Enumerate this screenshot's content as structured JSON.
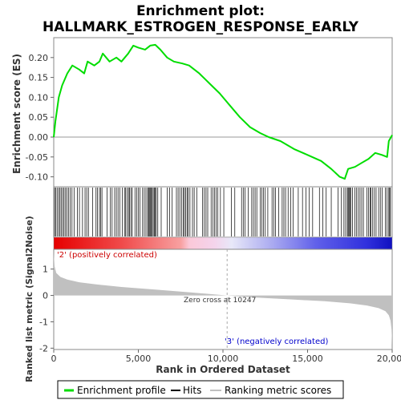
{
  "chart_data": {
    "type": "line",
    "title_line1": "Enrichment plot:",
    "title_line2": "HALLMARK_ESTROGEN_RESPONSE_EARLY",
    "es_panel": {
      "ylabel": "Enrichment score (ES)",
      "ylim": [
        -0.125,
        0.25
      ],
      "yticks": [
        0.2,
        0.15,
        0.1,
        0.05,
        0.0,
        -0.05,
        -0.1
      ],
      "ytick_labels": [
        "0.20",
        "0.15",
        "0.10",
        "0.05",
        "0.00",
        "-0.05",
        "-0.10"
      ],
      "line_color": "#00dd00",
      "points": [
        [
          0,
          0.0
        ],
        [
          100,
          0.04
        ],
        [
          300,
          0.1
        ],
        [
          500,
          0.13
        ],
        [
          800,
          0.16
        ],
        [
          1100,
          0.18
        ],
        [
          1500,
          0.17
        ],
        [
          1800,
          0.16
        ],
        [
          2000,
          0.19
        ],
        [
          2400,
          0.18
        ],
        [
          2700,
          0.19
        ],
        [
          2900,
          0.21
        ],
        [
          3300,
          0.19
        ],
        [
          3700,
          0.2
        ],
        [
          4000,
          0.19
        ],
        [
          4400,
          0.21
        ],
        [
          4700,
          0.23
        ],
        [
          5000,
          0.225
        ],
        [
          5400,
          0.22
        ],
        [
          5700,
          0.23
        ],
        [
          6000,
          0.232
        ],
        [
          6300,
          0.22
        ],
        [
          6700,
          0.2
        ],
        [
          7100,
          0.19
        ],
        [
          7600,
          0.185
        ],
        [
          8000,
          0.18
        ],
        [
          8600,
          0.16
        ],
        [
          9200,
          0.135
        ],
        [
          9800,
          0.11
        ],
        [
          10400,
          0.08
        ],
        [
          11000,
          0.05
        ],
        [
          11600,
          0.025
        ],
        [
          12200,
          0.01
        ],
        [
          12700,
          0.0
        ],
        [
          13400,
          -0.01
        ],
        [
          14200,
          -0.03
        ],
        [
          15000,
          -0.045
        ],
        [
          15800,
          -0.06
        ],
        [
          16400,
          -0.08
        ],
        [
          16900,
          -0.1
        ],
        [
          17200,
          -0.105
        ],
        [
          17400,
          -0.08
        ],
        [
          17800,
          -0.075
        ],
        [
          18200,
          -0.065
        ],
        [
          18600,
          -0.055
        ],
        [
          19000,
          -0.04
        ],
        [
          19400,
          -0.045
        ],
        [
          19700,
          -0.05
        ],
        [
          19800,
          -0.01
        ],
        [
          20000,
          0.005
        ]
      ]
    },
    "hits": [
      50,
      120,
      200,
      290,
      370,
      440,
      530,
      610,
      700,
      780,
      880,
      980,
      1080,
      1200,
      1400,
      1520,
      1700,
      1850,
      1950,
      2050,
      2300,
      2500,
      2580,
      2700,
      2780,
      2850,
      3150,
      3350,
      3450,
      3600,
      3700,
      3800,
      3900,
      4050,
      4180,
      4250,
      4330,
      4420,
      4480,
      4560,
      4640,
      4800,
      4900,
      5000,
      5100,
      5250,
      5350,
      5450,
      5550,
      5600,
      5650,
      5700,
      5760,
      5820,
      5880,
      5940,
      6000,
      6060,
      6150,
      6350,
      6700,
      6850,
      7000,
      7250,
      7350,
      7450,
      7550,
      7650,
      7720,
      7800,
      7880,
      7950,
      8050,
      8200,
      8300,
      8450,
      8800,
      8900,
      9000,
      9100,
      9300,
      9400,
      9500,
      9600,
      9700,
      9850,
      10050,
      10500,
      10700,
      11100,
      11200,
      11300,
      11500,
      11700,
      11800,
      11900,
      12000,
      12200,
      12300,
      12400,
      12500,
      12650,
      12900,
      13000,
      13100,
      13300,
      13500,
      13600,
      13700,
      13850,
      14000,
      14150,
      14450,
      14700,
      14900,
      15100,
      15300,
      15700,
      15900,
      16100,
      16400,
      16800,
      17000,
      17150,
      17250,
      17350,
      17400,
      17450,
      17500,
      17550,
      17650,
      17800,
      17900,
      18000,
      18100,
      18200,
      18300,
      18500,
      18600,
      18700,
      18750,
      18850,
      18950,
      19050,
      19200,
      19300,
      19400,
      19600,
      19700,
      19800,
      19850,
      19900
    ],
    "ranked_panel": {
      "ylabel": "Ranked list metric (Signal2Noise)",
      "ylim": [
        -2.05,
        1.75
      ],
      "yticks": [
        1,
        0,
        -1,
        -2
      ],
      "ytick_labels": [
        "1",
        "0",
        "-1",
        "-2"
      ],
      "fill_color": "#c0c0c0",
      "points": [
        [
          0,
          1.6
        ],
        [
          50,
          1.1
        ],
        [
          150,
          0.85
        ],
        [
          400,
          0.7
        ],
        [
          800,
          0.6
        ],
        [
          1500,
          0.5
        ],
        [
          2500,
          0.42
        ],
        [
          4000,
          0.32
        ],
        [
          6000,
          0.22
        ],
        [
          8000,
          0.12
        ],
        [
          10247,
          0.0
        ],
        [
          12000,
          -0.08
        ],
        [
          14000,
          -0.15
        ],
        [
          16000,
          -0.22
        ],
        [
          17500,
          -0.3
        ],
        [
          18500,
          -0.38
        ],
        [
          19200,
          -0.48
        ],
        [
          19600,
          -0.6
        ],
        [
          19800,
          -0.75
        ],
        [
          19900,
          -0.95
        ],
        [
          19960,
          -1.3
        ],
        [
          20000,
          -1.9
        ]
      ]
    },
    "xaxis": {
      "label": "Rank in Ordered Dataset",
      "xlim": [
        0,
        20000
      ],
      "ticks": [
        0,
        5000,
        10000,
        15000,
        20000
      ],
      "tick_labels": [
        "0",
        "5,000",
        "10,000",
        "15,000",
        "20,000"
      ]
    },
    "annotations": {
      "positive": "'2' (positively correlated)",
      "negative": "'3' (negatively correlated)",
      "zero_cross": "Zero cross at 10247",
      "zero_cross_rank": 10247
    },
    "legend": {
      "placement": "bottom",
      "items": [
        {
          "label": "Enrichment profile",
          "color": "#00dd00",
          "kind": "line"
        },
        {
          "label": "Hits",
          "color": "#000000",
          "kind": "line"
        },
        {
          "label": "Ranking metric scores",
          "color": "#c0c0c0",
          "kind": "line"
        }
      ]
    },
    "colorbar": {
      "stops": [
        {
          "rank": 0,
          "color": "#e60000"
        },
        {
          "rank": 4000,
          "color": "#f04a4a"
        },
        {
          "rank": 7500,
          "color": "#f8a0a0"
        },
        {
          "rank": 8000,
          "color": "#fbc8d8"
        },
        {
          "rank": 9500,
          "color": "#f4d4ec"
        },
        {
          "rank": 10500,
          "color": "#e8e8f8"
        },
        {
          "rank": 13000,
          "color": "#a8a8f0"
        },
        {
          "rank": 15500,
          "color": "#6060ea"
        },
        {
          "rank": 18500,
          "color": "#3030dd"
        },
        {
          "rank": 20000,
          "color": "#1010c0"
        }
      ]
    }
  }
}
